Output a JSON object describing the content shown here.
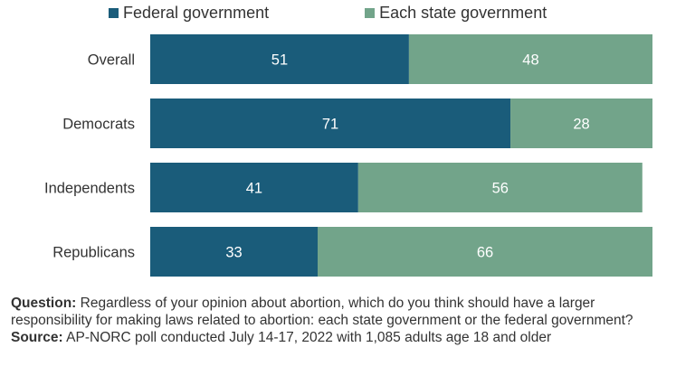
{
  "legend": {
    "series_0": "Federal government",
    "series_1": "Each state government"
  },
  "colors": {
    "federal": "#1a5c7a",
    "state": "#72a48a"
  },
  "chart_data": {
    "type": "bar",
    "orientation": "horizontal",
    "stacked": true,
    "categories": [
      "Overall",
      "Democrats",
      "Independents",
      "Republicans"
    ],
    "series": [
      {
        "name": "Federal government",
        "values": [
          51,
          71,
          41,
          33
        ]
      },
      {
        "name": "Each state government",
        "values": [
          48,
          28,
          56,
          66
        ]
      }
    ],
    "xlim": [
      0,
      99
    ],
    "data_labels": true,
    "legend_position": "top",
    "grid": false
  },
  "footnote": {
    "question_label": "Question:",
    "question_text": " Regardless of your opinion about abortion, which do you think should have a larger responsibility for making laws related to abortion: each state government or the federal government?",
    "source_label": "Source:",
    "source_text": " AP-NORC poll conducted July 14-17, 2022 with 1,085 adults age 18 and older"
  }
}
